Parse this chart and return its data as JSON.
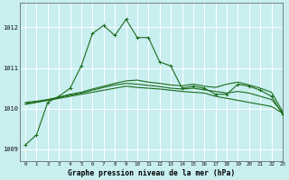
{
  "title": "Graphe pression niveau de la mer (hPa)",
  "background_color": "#c8eef0",
  "grid_color": "#ffffff",
  "grid_minor_color": "#ddeef0",
  "line_color": "#1a6b1a",
  "xlim": [
    -0.5,
    23
  ],
  "ylim": [
    1008.7,
    1012.6
  ],
  "yticks": [
    1009,
    1010,
    1011,
    1012
  ],
  "xticks": [
    0,
    1,
    2,
    3,
    4,
    5,
    6,
    7,
    8,
    9,
    10,
    11,
    12,
    13,
    14,
    15,
    16,
    17,
    18,
    19,
    20,
    21,
    22,
    23
  ],
  "series1": [
    1009.1,
    1009.35,
    1010.15,
    1010.3,
    1010.5,
    1011.05,
    1011.85,
    1012.05,
    1011.8,
    1012.2,
    1011.75,
    1011.75,
    1011.15,
    1011.05,
    1010.5,
    1010.55,
    1010.5,
    1010.35,
    1010.35,
    1010.6,
    1010.55,
    1010.45,
    1010.3,
    1009.85
  ],
  "series2": [
    1010.1,
    1010.15,
    1010.2,
    1010.25,
    1010.3,
    1010.35,
    1010.4,
    1010.45,
    1010.5,
    1010.55,
    1010.52,
    1010.5,
    1010.48,
    1010.45,
    1010.42,
    1010.4,
    1010.38,
    1010.3,
    1010.25,
    1010.2,
    1010.15,
    1010.1,
    1010.05,
    1009.88
  ],
  "series3": [
    1010.15,
    1010.18,
    1010.22,
    1010.28,
    1010.35,
    1010.4,
    1010.48,
    1010.55,
    1010.62,
    1010.68,
    1010.7,
    1010.65,
    1010.62,
    1010.58,
    1010.56,
    1010.6,
    1010.55,
    1010.52,
    1010.6,
    1010.65,
    1010.58,
    1010.5,
    1010.4,
    1009.92
  ],
  "series4": [
    1010.12,
    1010.16,
    1010.21,
    1010.27,
    1010.33,
    1010.38,
    1010.45,
    1010.52,
    1010.58,
    1010.62,
    1010.6,
    1010.57,
    1010.54,
    1010.5,
    1010.48,
    1010.5,
    1010.46,
    1010.42,
    1010.38,
    1010.42,
    1010.38,
    1010.3,
    1010.22,
    1009.9
  ]
}
